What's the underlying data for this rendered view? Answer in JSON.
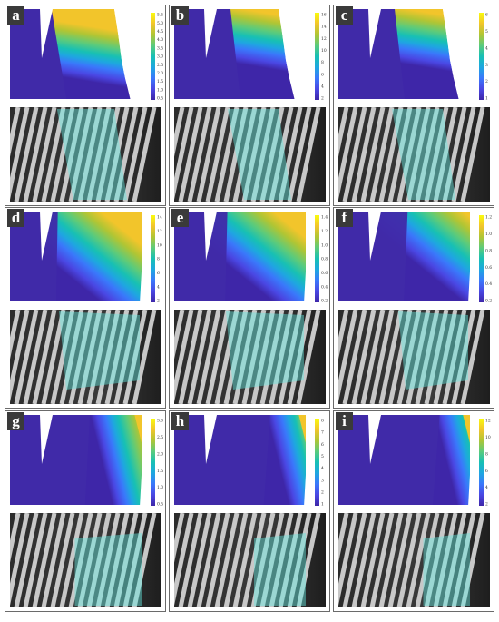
{
  "figure": {
    "colormap": [
      "#3e26a8",
      "#4a47e3",
      "#3a78fb",
      "#1ea7e0",
      "#17c0b4",
      "#5ccb7b",
      "#b0c534",
      "#f2c52b",
      "#f9fb0e"
    ],
    "background_color": "#402aa8",
    "overlay_color": "#63e8e0",
    "panels": [
      {
        "label": "a",
        "ticks": [
          "5.5",
          "5.0",
          "4.5",
          "4.0",
          "3.5",
          "3.0",
          "2.5",
          "2.0",
          "1.5",
          "1.0",
          "0.5"
        ]
      },
      {
        "label": "b",
        "ticks": [
          "16",
          "14",
          "12",
          "10",
          "8",
          "6",
          "4",
          "2"
        ]
      },
      {
        "label": "c",
        "ticks": [
          "6",
          "5",
          "4",
          "3",
          "2",
          "1"
        ]
      },
      {
        "label": "d",
        "ticks": [
          "14",
          "12",
          "10",
          "8",
          "6",
          "4",
          "2"
        ]
      },
      {
        "label": "e",
        "ticks": [
          "1.4",
          "1.2",
          "1.0",
          "0.8",
          "0.6",
          "0.4",
          "0.2"
        ]
      },
      {
        "label": "f",
        "ticks": [
          "1.2",
          "1.0",
          "0.8",
          "0.6",
          "0.4",
          "0.2"
        ]
      },
      {
        "label": "g",
        "ticks": [
          "3.0",
          "2.5",
          "2.0",
          "1.5",
          "1.0",
          "0.5"
        ]
      },
      {
        "label": "h",
        "ticks": [
          "8",
          "7",
          "6",
          "5",
          "4",
          "3",
          "2",
          "1"
        ]
      },
      {
        "label": "i",
        "ticks": [
          "12",
          "10",
          "8",
          "6",
          "4",
          "2"
        ]
      }
    ]
  }
}
